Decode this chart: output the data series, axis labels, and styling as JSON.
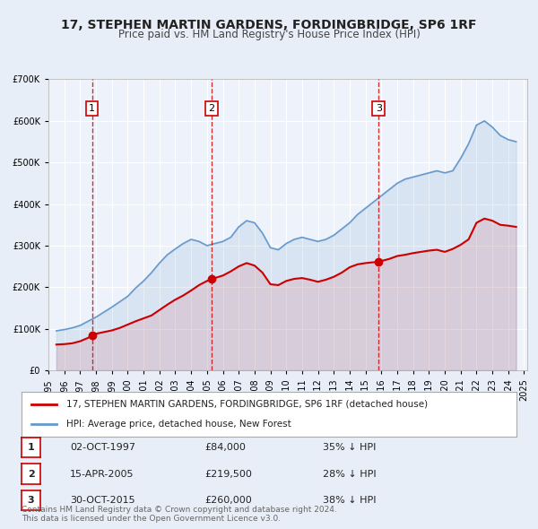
{
  "title": "17, STEPHEN MARTIN GARDENS, FORDINGBRIDGE, SP6 1RF",
  "subtitle": "Price paid vs. HM Land Registry's House Price Index (HPI)",
  "bg_color": "#e8eef8",
  "plot_bg_color": "#eef2fa",
  "red_color": "#cc0000",
  "blue_color": "#6699cc",
  "ylim": [
    0,
    700000
  ],
  "yticks": [
    0,
    100000,
    200000,
    300000,
    400000,
    500000,
    600000,
    700000
  ],
  "xlim_start": 1995.5,
  "xlim_end": 2025.2,
  "sale_dates": [
    1997.75,
    2005.29,
    2015.83
  ],
  "sale_prices": [
    84000,
    219500,
    260000
  ],
  "sale_labels": [
    "1",
    "2",
    "3"
  ],
  "legend_label_red": "17, STEPHEN MARTIN GARDENS, FORDINGBRIDGE, SP6 1RF (detached house)",
  "legend_label_blue": "HPI: Average price, detached house, New Forest",
  "table_rows": [
    {
      "num": "1",
      "date": "02-OCT-1997",
      "price": "£84,000",
      "pct": "35% ↓ HPI"
    },
    {
      "num": "2",
      "date": "15-APR-2005",
      "price": "£219,500",
      "pct": "28% ↓ HPI"
    },
    {
      "num": "3",
      "date": "30-OCT-2015",
      "price": "£260,000",
      "pct": "38% ↓ HPI"
    }
  ],
  "footer": "Contains HM Land Registry data © Crown copyright and database right 2024.\nThis data is licensed under the Open Government Licence v3.0.",
  "hpi_data": {
    "years": [
      1995.5,
      1996.0,
      1996.5,
      1997.0,
      1997.5,
      1998.0,
      1998.5,
      1999.0,
      1999.5,
      2000.0,
      2000.5,
      2001.0,
      2001.5,
      2002.0,
      2002.5,
      2003.0,
      2003.5,
      2004.0,
      2004.5,
      2005.0,
      2005.5,
      2006.0,
      2006.5,
      2007.0,
      2007.5,
      2008.0,
      2008.5,
      2009.0,
      2009.5,
      2010.0,
      2010.5,
      2011.0,
      2011.5,
      2012.0,
      2012.5,
      2013.0,
      2013.5,
      2014.0,
      2014.5,
      2015.0,
      2015.5,
      2016.0,
      2016.5,
      2017.0,
      2017.5,
      2018.0,
      2018.5,
      2019.0,
      2019.5,
      2020.0,
      2020.5,
      2021.0,
      2021.5,
      2022.0,
      2022.5,
      2023.0,
      2023.5,
      2024.0,
      2024.5
    ],
    "values": [
      95000,
      98000,
      102000,
      108000,
      118000,
      128000,
      140000,
      152000,
      165000,
      178000,
      198000,
      215000,
      235000,
      258000,
      278000,
      292000,
      305000,
      315000,
      310000,
      300000,
      305000,
      310000,
      320000,
      345000,
      360000,
      355000,
      330000,
      295000,
      290000,
      305000,
      315000,
      320000,
      315000,
      310000,
      315000,
      325000,
      340000,
      355000,
      375000,
      390000,
      405000,
      420000,
      435000,
      450000,
      460000,
      465000,
      470000,
      475000,
      480000,
      475000,
      480000,
      510000,
      545000,
      590000,
      600000,
      585000,
      565000,
      555000,
      550000
    ]
  },
  "price_paid_data": {
    "years": [
      1995.5,
      1996.0,
      1996.5,
      1997.0,
      1997.5,
      1997.75,
      1998.0,
      1998.5,
      1999.0,
      1999.5,
      2000.0,
      2000.5,
      2001.0,
      2001.5,
      2002.0,
      2002.5,
      2003.0,
      2003.5,
      2004.0,
      2004.5,
      2005.0,
      2005.29,
      2005.5,
      2006.0,
      2006.5,
      2007.0,
      2007.5,
      2008.0,
      2008.5,
      2009.0,
      2009.5,
      2010.0,
      2010.5,
      2011.0,
      2011.5,
      2012.0,
      2012.5,
      2013.0,
      2013.5,
      2014.0,
      2014.5,
      2015.0,
      2015.5,
      2015.83,
      2016.0,
      2016.5,
      2017.0,
      2017.5,
      2018.0,
      2018.5,
      2019.0,
      2019.5,
      2020.0,
      2020.5,
      2021.0,
      2021.5,
      2022.0,
      2022.5,
      2023.0,
      2023.5,
      2024.0,
      2024.5
    ],
    "values": [
      62000,
      63000,
      65000,
      70000,
      78000,
      84000,
      88000,
      92000,
      96000,
      102000,
      110000,
      118000,
      125000,
      132000,
      145000,
      158000,
      170000,
      180000,
      192000,
      205000,
      215000,
      219500,
      222000,
      228000,
      238000,
      250000,
      258000,
      252000,
      235000,
      207000,
      205000,
      215000,
      220000,
      222000,
      218000,
      213000,
      218000,
      225000,
      235000,
      248000,
      255000,
      258000,
      260000,
      260000,
      263000,
      268000,
      275000,
      278000,
      282000,
      285000,
      288000,
      290000,
      285000,
      292000,
      302000,
      315000,
      355000,
      365000,
      360000,
      350000,
      348000,
      345000
    ]
  }
}
